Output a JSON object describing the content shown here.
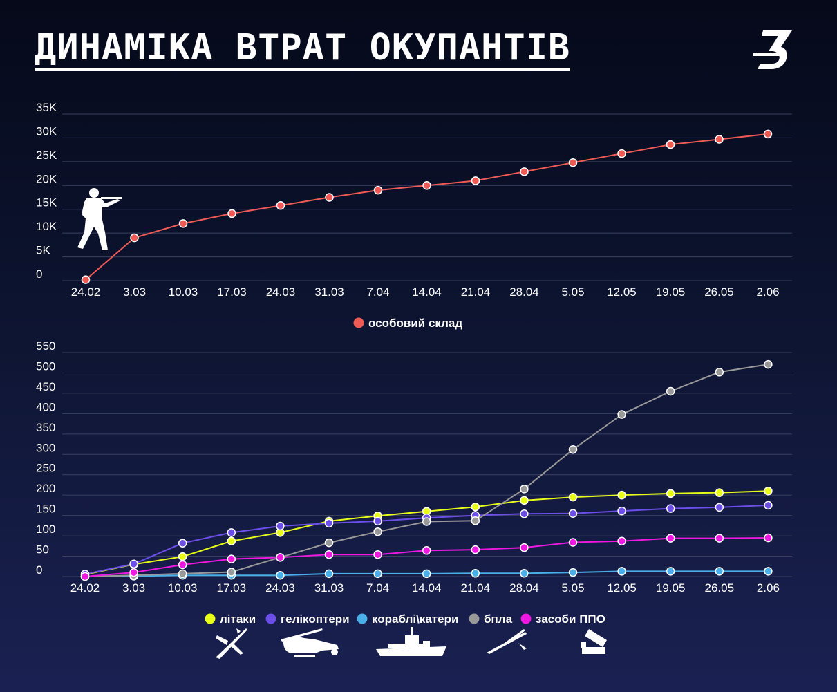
{
  "title": "ДИНАМІКА ВТРАТ ОКУПАНТІВ",
  "logo_letter": "З",
  "dates": [
    "24.02",
    "3.03",
    "10.03",
    "17.03",
    "24.03",
    "31.03",
    "7.04",
    "14.04",
    "21.04",
    "28.04",
    "5.05",
    "12.05",
    "19.05",
    "26.05",
    "2.06"
  ],
  "colors": {
    "personnel": "#f05a55",
    "aircraft": "#e8ff16",
    "helicopters": "#6c4ee8",
    "ships": "#4aafe8",
    "uav": "#999999",
    "air_defense": "#ee18e0",
    "grid": "#3a4160"
  },
  "chart_data": [
    {
      "type": "line",
      "x": [
        "24.02",
        "3.03",
        "10.03",
        "17.03",
        "24.03",
        "31.03",
        "7.04",
        "14.04",
        "21.04",
        "28.04",
        "5.05",
        "12.05",
        "19.05",
        "26.05",
        "2.06"
      ],
      "yticks": [
        "0",
        "5K",
        "10K",
        "15K",
        "20K",
        "25K",
        "30K",
        "35K"
      ],
      "ylim": [
        0,
        35000
      ],
      "grid": true,
      "legend_position": "bottom-center",
      "series": [
        {
          "name": "особовий склад",
          "color_key": "personnel",
          "values": [
            200,
            9000,
            12000,
            14100,
            15800,
            17500,
            19000,
            20000,
            21000,
            22900,
            24800,
            26700,
            28600,
            29700,
            30800
          ]
        }
      ]
    },
    {
      "type": "line",
      "x": [
        "24.02",
        "3.03",
        "10.03",
        "17.03",
        "24.03",
        "31.03",
        "7.04",
        "14.04",
        "21.04",
        "28.04",
        "5.05",
        "12.05",
        "19.05",
        "26.05",
        "2.06"
      ],
      "yticks": [
        "0",
        "50",
        "100",
        "150",
        "200",
        "250",
        "300",
        "350",
        "400",
        "450",
        "500",
        "550"
      ],
      "ylim": [
        0,
        550
      ],
      "grid": true,
      "legend_position": "bottom-center",
      "series": [
        {
          "name": "літаки",
          "color_key": "aircraft",
          "values": [
            5,
            30,
            49,
            87,
            108,
            136,
            149,
            160,
            171,
            187,
            195,
            200,
            204,
            206,
            210
          ]
        },
        {
          "name": "гелікоптери",
          "color_key": "helicopters",
          "values": [
            6,
            31,
            82,
            108,
            124,
            131,
            136,
            144,
            150,
            154,
            155,
            161,
            167,
            170,
            175
          ]
        },
        {
          "name": "кораблі\\катери",
          "color_key": "ships",
          "values": [
            0,
            1,
            3,
            3,
            3,
            7,
            7,
            7,
            8,
            8,
            10,
            13,
            13,
            13,
            13
          ]
        },
        {
          "name": "бпла",
          "color_key": "uav",
          "values": [
            0,
            3,
            7,
            11,
            47,
            83,
            110,
            135,
            137,
            215,
            312,
            398,
            455,
            502,
            521
          ]
        },
        {
          "name": "засоби ППО",
          "color_key": "air_defense",
          "values": [
            0,
            10,
            29,
            43,
            47,
            54,
            54,
            64,
            66,
            71,
            84,
            87,
            94,
            94,
            95
          ]
        }
      ]
    }
  ],
  "icons": {
    "soldier": "soldier-icon",
    "aircraft": "aircraft-icon",
    "helicopter": "helicopter-icon",
    "ship": "ship-icon",
    "uav": "uav-icon",
    "air_defense": "air-defense-icon"
  }
}
